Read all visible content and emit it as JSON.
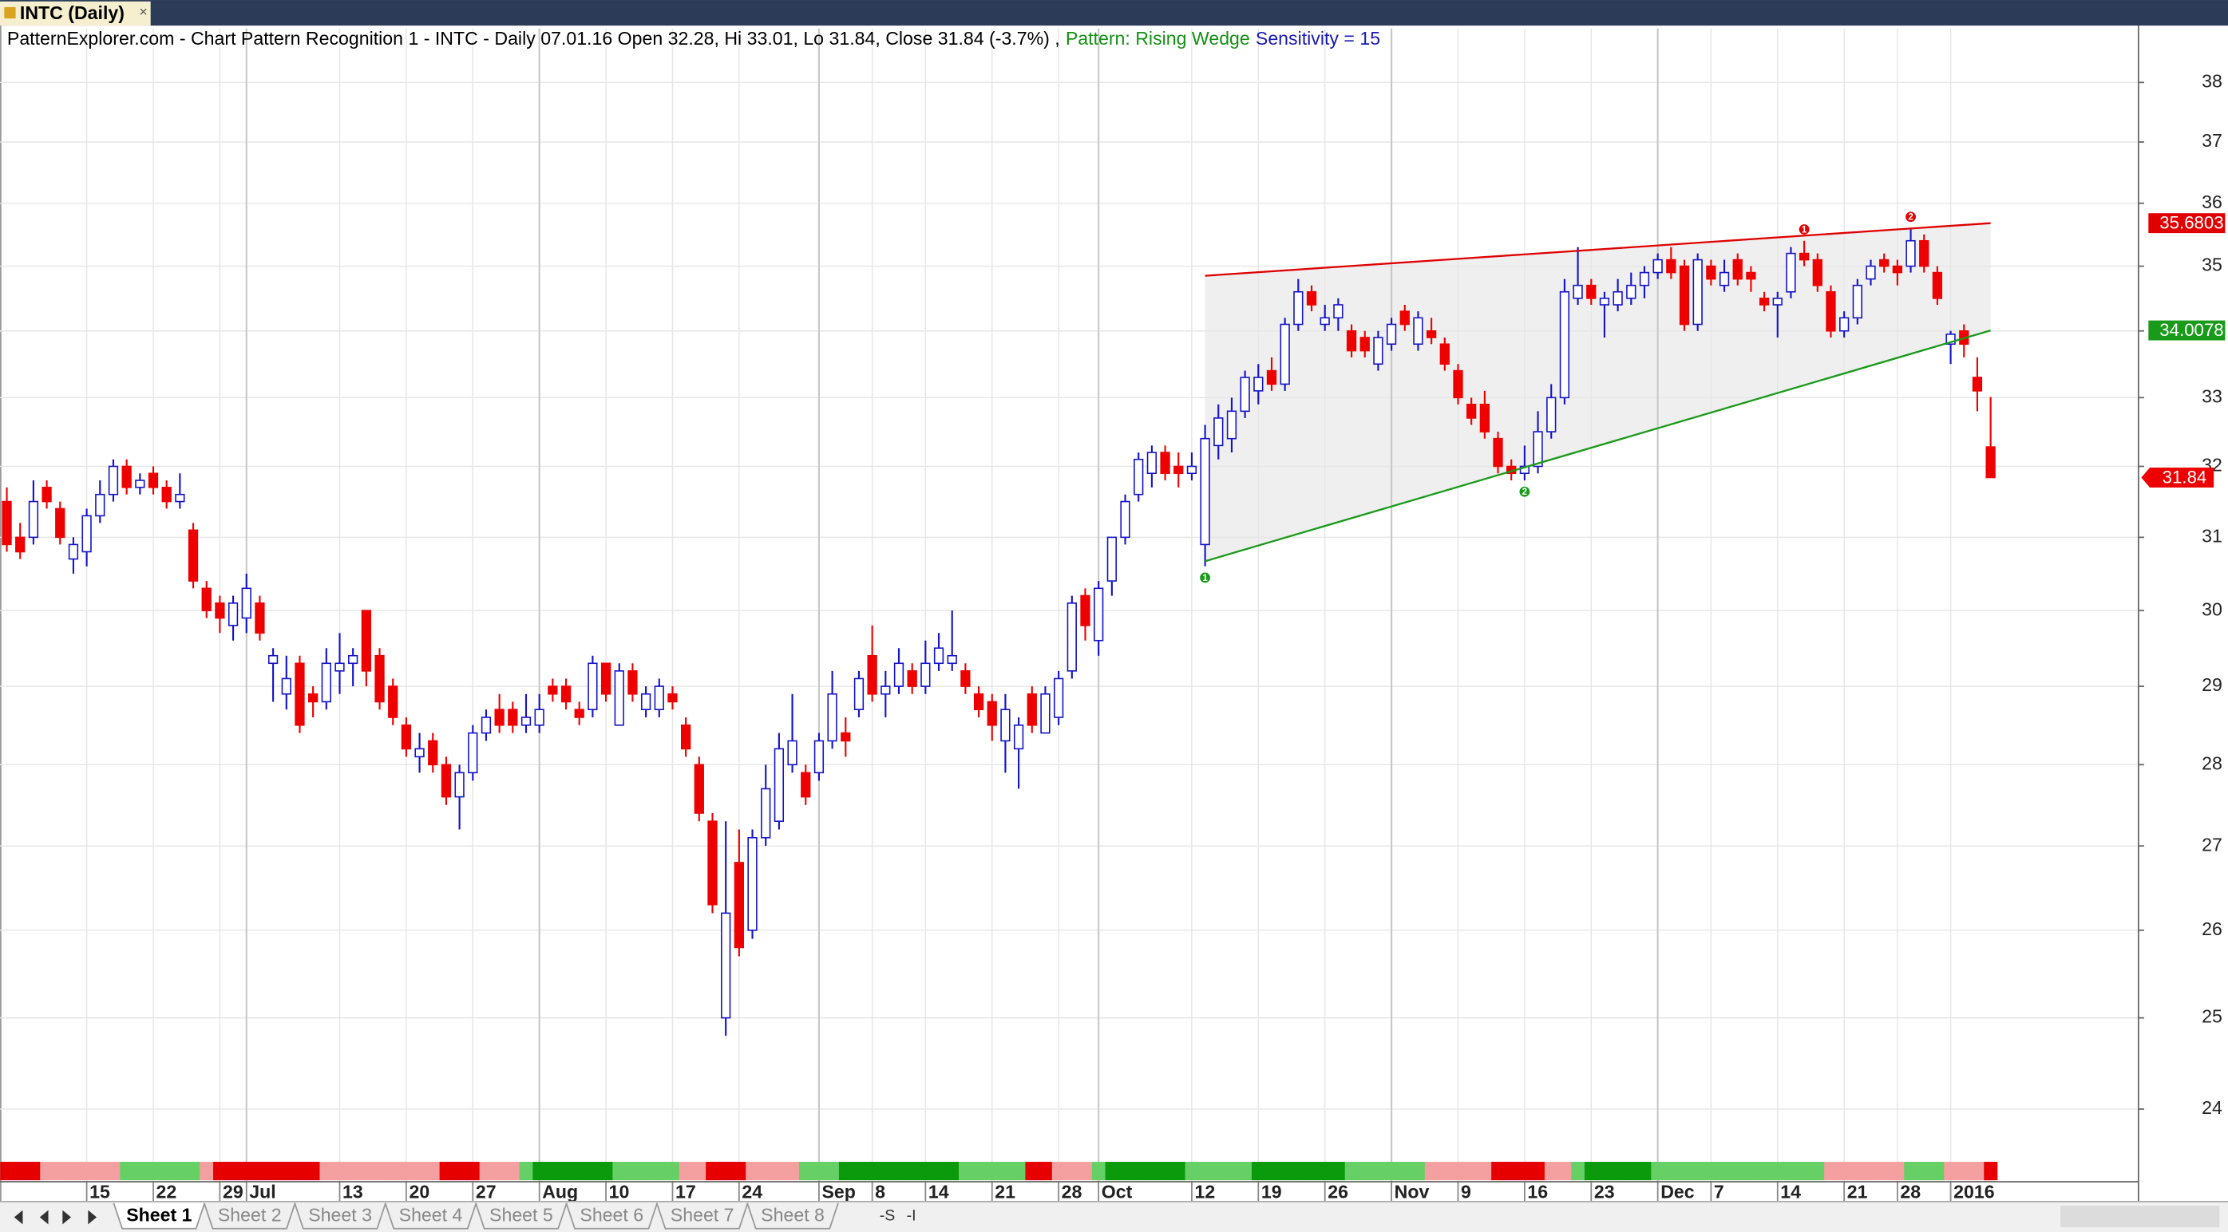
{
  "window_tab": {
    "title": "INTC (Daily)",
    "close": "×"
  },
  "header": {
    "text": "PatternExplorer.com - Chart Pattern Recognition 1  - INTC - Daily 07.01.16 Open 32.28, Hi 33.01, Lo 31.84, Close 31.84 (-3.7%) ,",
    "pattern": "Pattern: Rising Wedge",
    "sensitivity": "Sensitivity = 15"
  },
  "chart_data": {
    "type": "candlestick",
    "log_scale": true,
    "grid": true,
    "up_color": "#1414c8",
    "down_color": "#ee0000",
    "ylim": [
      23.44,
      38.93
    ],
    "yticks": [
      24,
      25,
      26,
      27,
      28,
      29,
      30,
      31,
      32,
      33,
      34,
      35,
      36,
      37,
      38
    ],
    "categories": [
      null,
      null,
      null,
      null,
      null,
      null,
      "15",
      null,
      null,
      null,
      null,
      "22",
      null,
      null,
      null,
      null,
      "29",
      null,
      "Jul",
      null,
      null,
      null,
      null,
      null,
      null,
      "13",
      null,
      null,
      null,
      null,
      "20",
      null,
      null,
      null,
      null,
      "27",
      null,
      null,
      null,
      null,
      "Aug",
      null,
      null,
      null,
      null,
      "10",
      null,
      null,
      null,
      null,
      "17",
      null,
      null,
      null,
      null,
      "24",
      null,
      null,
      null,
      null,
      null,
      "Sep",
      null,
      null,
      null,
      "8",
      null,
      null,
      null,
      "14",
      null,
      null,
      null,
      null,
      "21",
      null,
      null,
      null,
      null,
      "28",
      null,
      null,
      "Oct",
      null,
      null,
      null,
      null,
      null,
      null,
      "12",
      null,
      null,
      null,
      null,
      "19",
      null,
      null,
      null,
      null,
      "26",
      null,
      null,
      null,
      null,
      "Nov",
      null,
      null,
      null,
      null,
      "9",
      null,
      null,
      null,
      null,
      "16",
      null,
      null,
      null,
      null,
      "23",
      null,
      null,
      null,
      null,
      "Dec",
      null,
      null,
      null,
      "7",
      null,
      null,
      null,
      null,
      "14",
      null,
      null,
      null,
      null,
      "21",
      null,
      null,
      null,
      "28",
      null,
      null,
      null,
      "2016",
      null,
      null,
      null
    ],
    "open": [
      31.5,
      31.0,
      31.0,
      31.7,
      31.4,
      30.7,
      30.8,
      31.3,
      31.6,
      32.0,
      31.7,
      31.9,
      31.7,
      31.5,
      31.1,
      30.3,
      30.1,
      29.8,
      29.9,
      30.1,
      29.3,
      28.9,
      29.3,
      28.9,
      28.8,
      29.2,
      29.3,
      30.0,
      29.4,
      29.0,
      28.5,
      28.1,
      28.3,
      28.0,
      27.6,
      27.9,
      28.4,
      28.7,
      28.7,
      28.5,
      28.5,
      29.0,
      29.0,
      28.7,
      28.7,
      29.3,
      28.5,
      29.2,
      28.7,
      28.7,
      28.9,
      28.5,
      28.0,
      27.3,
      25.0,
      26.8,
      26.0,
      27.1,
      27.3,
      28.0,
      27.9,
      27.9,
      28.3,
      28.4,
      28.7,
      29.4,
      28.9,
      29.0,
      29.2,
      29.0,
      29.3,
      29.3,
      29.2,
      28.9,
      28.8,
      28.3,
      28.2,
      28.9,
      28.4,
      28.6,
      29.2,
      30.2,
      29.6,
      30.4,
      31.0,
      31.6,
      31.9,
      32.2,
      32.0,
      31.9,
      30.9,
      32.3,
      32.4,
      32.8,
      33.1,
      33.4,
      33.2,
      34.1,
      34.6,
      34.1,
      34.2,
      34.0,
      33.9,
      33.5,
      33.8,
      34.3,
      33.8,
      34.0,
      33.8,
      33.4,
      32.9,
      32.9,
      32.4,
      32.0,
      31.9,
      32.0,
      32.5,
      33.0,
      34.5,
      34.7,
      34.4,
      34.4,
      34.5,
      34.7,
      34.9,
      35.1,
      35.0,
      34.1,
      35.0,
      34.7,
      35.1,
      34.9,
      34.5,
      34.4,
      34.6,
      35.2,
      35.1,
      34.6,
      34.0,
      34.2,
      34.8,
      35.1,
      35.0,
      35.0,
      35.4,
      34.9,
      33.8,
      34.0,
      33.3,
      32.28
    ],
    "high": [
      31.7,
      31.2,
      31.8,
      31.8,
      31.5,
      31.0,
      31.4,
      31.8,
      32.1,
      32.1,
      31.9,
      32.0,
      31.8,
      31.9,
      31.2,
      30.4,
      30.2,
      30.2,
      30.5,
      30.2,
      29.5,
      29.4,
      29.4,
      29.0,
      29.5,
      29.7,
      29.5,
      30.0,
      29.5,
      29.1,
      28.6,
      28.4,
      28.4,
      28.1,
      28.0,
      28.5,
      28.7,
      28.9,
      28.8,
      28.9,
      28.9,
      29.1,
      29.1,
      28.8,
      29.4,
      29.3,
      29.3,
      29.3,
      29.0,
      29.1,
      29.0,
      28.6,
      28.1,
      27.4,
      27.3,
      27.2,
      27.2,
      28.0,
      28.4,
      28.9,
      28.0,
      28.4,
      29.2,
      28.6,
      29.2,
      29.8,
      29.2,
      29.5,
      29.3,
      29.6,
      29.7,
      30.0,
      29.3,
      29.0,
      28.9,
      28.9,
      28.6,
      29.0,
      29.0,
      29.2,
      30.2,
      30.3,
      30.4,
      31.0,
      31.6,
      32.2,
      32.3,
      32.3,
      32.2,
      32.2,
      32.6,
      32.9,
      33.0,
      33.4,
      33.5,
      33.6,
      34.2,
      34.8,
      34.7,
      34.4,
      34.5,
      34.1,
      34.0,
      34.0,
      34.2,
      34.4,
      34.3,
      34.2,
      33.9,
      33.5,
      33.0,
      33.1,
      32.5,
      32.1,
      32.3,
      32.8,
      33.2,
      34.8,
      35.3,
      34.8,
      34.6,
      34.8,
      34.9,
      35.0,
      35.2,
      35.3,
      35.1,
      35.2,
      35.1,
      35.1,
      35.2,
      35.0,
      34.6,
      34.6,
      35.3,
      35.4,
      35.2,
      34.7,
      34.3,
      34.8,
      35.1,
      35.2,
      35.1,
      35.6,
      35.5,
      35.0,
      34.0,
      34.1,
      33.6,
      33.01
    ],
    "low": [
      30.8,
      30.7,
      30.9,
      31.4,
      30.9,
      30.5,
      30.6,
      31.2,
      31.5,
      31.6,
      31.6,
      31.6,
      31.4,
      31.4,
      30.3,
      29.9,
      29.7,
      29.6,
      29.7,
      29.6,
      28.8,
      28.7,
      28.4,
      28.6,
      28.7,
      28.9,
      29.0,
      29.0,
      28.7,
      28.5,
      28.1,
      27.9,
      27.9,
      27.5,
      27.2,
      27.8,
      28.3,
      28.4,
      28.4,
      28.4,
      28.4,
      28.8,
      28.7,
      28.5,
      28.6,
      28.8,
      28.5,
      28.8,
      28.6,
      28.6,
      28.7,
      28.1,
      27.3,
      26.2,
      24.8,
      25.7,
      25.9,
      27.0,
      27.2,
      27.9,
      27.5,
      27.8,
      28.2,
      28.1,
      28.6,
      28.8,
      28.6,
      28.9,
      28.9,
      28.9,
      29.2,
      29.2,
      28.9,
      28.6,
      28.3,
      27.9,
      27.7,
      28.4,
      28.4,
      28.5,
      29.1,
      29.6,
      29.4,
      30.2,
      30.9,
      31.5,
      31.7,
      31.8,
      31.7,
      31.8,
      30.6,
      32.1,
      32.2,
      32.7,
      32.9,
      33.1,
      33.1,
      34.0,
      34.3,
      34.0,
      34.0,
      33.6,
      33.6,
      33.4,
      33.7,
      34.0,
      33.7,
      33.8,
      33.4,
      32.9,
      32.6,
      32.4,
      31.9,
      31.8,
      31.8,
      31.9,
      32.4,
      32.9,
      34.4,
      34.4,
      33.9,
      34.3,
      34.4,
      34.5,
      34.8,
      34.8,
      34.0,
      34.0,
      34.7,
      34.6,
      34.7,
      34.6,
      34.3,
      33.9,
      34.5,
      35.0,
      34.6,
      33.9,
      33.9,
      34.1,
      34.7,
      34.9,
      34.7,
      34.9,
      34.9,
      34.4,
      33.5,
      33.6,
      32.8,
      31.84
    ],
    "close": [
      30.9,
      30.8,
      31.5,
      31.5,
      31.0,
      30.9,
      31.3,
      31.6,
      32.0,
      31.7,
      31.8,
      31.7,
      31.5,
      31.6,
      30.4,
      30.0,
      29.9,
      30.1,
      30.3,
      29.7,
      29.4,
      29.1,
      28.5,
      28.8,
      29.3,
      29.3,
      29.4,
      29.2,
      28.8,
      28.6,
      28.2,
      28.2,
      28.0,
      27.6,
      27.9,
      28.4,
      28.6,
      28.5,
      28.5,
      28.6,
      28.7,
      28.9,
      28.8,
      28.6,
      29.3,
      28.9,
      29.2,
      28.9,
      28.9,
      29.0,
      28.8,
      28.2,
      27.4,
      26.3,
      26.2,
      25.8,
      27.1,
      27.7,
      28.2,
      28.3,
      27.6,
      28.3,
      28.9,
      28.3,
      29.1,
      28.9,
      29.0,
      29.3,
      29.0,
      29.3,
      29.5,
      29.4,
      29.0,
      28.7,
      28.5,
      28.7,
      28.5,
      28.5,
      28.9,
      29.1,
      30.1,
      29.8,
      30.3,
      31.0,
      31.5,
      32.1,
      32.2,
      31.9,
      31.9,
      32.0,
      32.4,
      32.7,
      32.8,
      33.3,
      33.3,
      33.2,
      34.1,
      34.6,
      34.4,
      34.2,
      34.4,
      33.7,
      33.7,
      33.9,
      34.1,
      34.1,
      34.2,
      33.9,
      33.5,
      33.0,
      32.7,
      32.5,
      32.0,
      31.9,
      32.0,
      32.5,
      33.0,
      34.6,
      34.7,
      34.5,
      34.5,
      34.6,
      34.7,
      34.9,
      35.1,
      34.9,
      34.1,
      35.1,
      34.8,
      34.9,
      34.8,
      34.8,
      34.4,
      34.5,
      35.2,
      35.1,
      34.7,
      34.0,
      34.2,
      34.7,
      35.0,
      35.0,
      34.9,
      35.4,
      35.0,
      34.5,
      33.95,
      33.8,
      33.1,
      31.84
    ],
    "heat_colors": [
      "#e60000",
      "#e60000",
      "#e60000",
      "#f5a0a0",
      "#f5a0a0",
      "#f5a0a0",
      "#f5a0a0",
      "#f5a0a0",
      "#f5a0a0",
      "#66d066",
      "#66d066",
      "#66d066",
      "#66d066",
      "#66d066",
      "#66d066",
      "#f5a0a0",
      "#e60000",
      "#e60000",
      "#e60000",
      "#e60000",
      "#e60000",
      "#e60000",
      "#e60000",
      "#e60000",
      "#f5a0a0",
      "#f5a0a0",
      "#f5a0a0",
      "#f5a0a0",
      "#f5a0a0",
      "#f5a0a0",
      "#f5a0a0",
      "#f5a0a0",
      "#f5a0a0",
      "#e60000",
      "#e60000",
      "#e60000",
      "#f5a0a0",
      "#f5a0a0",
      "#f5a0a0",
      "#66d066",
      "#0b9a0b",
      "#0b9a0b",
      "#0b9a0b",
      "#0b9a0b",
      "#0b9a0b",
      "#0b9a0b",
      "#66d066",
      "#66d066",
      "#66d066",
      "#66d066",
      "#66d066",
      "#f5a0a0",
      "#f5a0a0",
      "#e60000",
      "#e60000",
      "#e60000",
      "#f5a0a0",
      "#f5a0a0",
      "#f5a0a0",
      "#f5a0a0",
      "#66d066",
      "#66d066",
      "#66d066",
      "#0b9a0b",
      "#0b9a0b",
      "#0b9a0b",
      "#0b9a0b",
      "#0b9a0b",
      "#0b9a0b",
      "#0b9a0b",
      "#0b9a0b",
      "#0b9a0b",
      "#66d066",
      "#66d066",
      "#66d066",
      "#66d066",
      "#66d066",
      "#e60000",
      "#e60000",
      "#f5a0a0",
      "#f5a0a0",
      "#f5a0a0",
      "#66d066",
      "#0b9a0b",
      "#0b9a0b",
      "#0b9a0b",
      "#0b9a0b",
      "#0b9a0b",
      "#0b9a0b",
      "#66d066",
      "#66d066",
      "#66d066",
      "#66d066",
      "#66d066",
      "#0b9a0b",
      "#0b9a0b",
      "#0b9a0b",
      "#0b9a0b",
      "#0b9a0b",
      "#0b9a0b",
      "#0b9a0b",
      "#66d066",
      "#66d066",
      "#66d066",
      "#66d066",
      "#66d066",
      "#66d066",
      "#f5a0a0",
      "#f5a0a0",
      "#f5a0a0",
      "#f5a0a0",
      "#f5a0a0",
      "#e60000",
      "#e60000",
      "#e60000",
      "#e60000",
      "#f5a0a0",
      "#f5a0a0",
      "#66d066",
      "#0b9a0b",
      "#0b9a0b",
      "#0b9a0b",
      "#0b9a0b",
      "#0b9a0b",
      "#66d066",
      "#66d066",
      "#66d066",
      "#66d066",
      "#66d066",
      "#66d066",
      "#66d066",
      "#66d066",
      "#66d066",
      "#66d066",
      "#66d066",
      "#66d066",
      "#66d066",
      "#f5a0a0",
      "#f5a0a0",
      "#f5a0a0",
      "#f5a0a0",
      "#f5a0a0",
      "#f5a0a0",
      "#66d066",
      "#66d066",
      "#66d066",
      "#f5a0a0",
      "#f5a0a0",
      "#f5a0a0",
      "#e60000"
    ],
    "wedge": {
      "from": 90,
      "to": 149,
      "upper": [
        34.85,
        35.6803
      ],
      "lower": [
        30.67,
        34.0078
      ],
      "upper_color": "#e00000",
      "lower_color": "#1a9a1a",
      "fill": "#efefef",
      "upper_pivots": [
        {
          "label": "1",
          "candle": 135
        },
        {
          "label": "2",
          "candle": 143
        }
      ],
      "lower_pivots": [
        {
          "label": "1",
          "candle": 90
        },
        {
          "label": "2",
          "candle": 114
        }
      ]
    }
  },
  "sheets": [
    "Sheet 1",
    "Sheet 2",
    "Sheet 3",
    "Sheet 4",
    "Sheet 5",
    "Sheet 6",
    "Sheet 7",
    "Sheet 8"
  ],
  "sheet_tools": [
    "-S",
    "-I"
  ]
}
